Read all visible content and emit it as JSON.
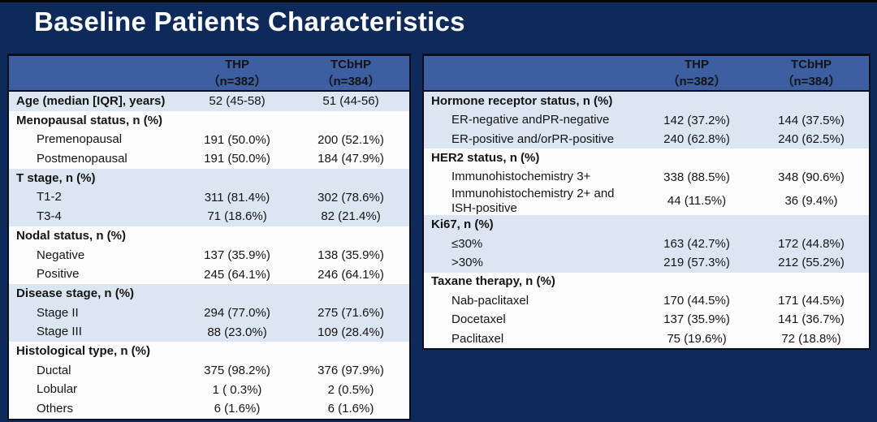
{
  "title": "Baseline Patients Characteristics",
  "colors": {
    "background_navy": "#0d2a5a",
    "table_header_blue": "#3d5fa2",
    "band_light_blue": "#dce5f2",
    "band_white": "#fdfdfe",
    "border_black": "#0a0e1c",
    "title_text": "#ffffff",
    "body_text": "#141414"
  },
  "left_table": {
    "header": {
      "thp": "THP\n（n=382）",
      "tcbhp": "TCbHP\n（n=384）"
    },
    "rows": [
      {
        "label": "Age (median [IQR], years)",
        "style": "section",
        "band": "light",
        "thp": "52 (45-58)",
        "tcbhp": "51 (44-56)"
      },
      {
        "label": "Menopausal status, n (%)",
        "style": "section",
        "band": "white",
        "thp": "",
        "tcbhp": ""
      },
      {
        "label": "Premenopausal",
        "style": "item",
        "band": "white",
        "thp": "191 (50.0%)",
        "tcbhp": "200 (52.1%)"
      },
      {
        "label": "Postmenopausal",
        "style": "item",
        "band": "white",
        "thp": "191 (50.0%)",
        "tcbhp": "184 (47.9%)"
      },
      {
        "label": "T stage, n (%)",
        "style": "section",
        "band": "light",
        "thp": "",
        "tcbhp": ""
      },
      {
        "label": "T1-2",
        "style": "item",
        "band": "light",
        "thp": "311 (81.4%)",
        "tcbhp": "302 (78.6%)"
      },
      {
        "label": "T3-4",
        "style": "item",
        "band": "light",
        "thp": "71 (18.6%)",
        "tcbhp": "82 (21.4%)"
      },
      {
        "label": "Nodal status, n (%)",
        "style": "section",
        "band": "white",
        "thp": "",
        "tcbhp": ""
      },
      {
        "label": "Negative",
        "style": "item",
        "band": "white",
        "thp": "137 (35.9%)",
        "tcbhp": "138 (35.9%)"
      },
      {
        "label": "Positive",
        "style": "item",
        "band": "white",
        "thp": "245 (64.1%)",
        "tcbhp": "246 (64.1%)"
      },
      {
        "label": "Disease stage, n (%)",
        "style": "section",
        "band": "light",
        "thp": "",
        "tcbhp": ""
      },
      {
        "label": "Stage II",
        "style": "item",
        "band": "light",
        "thp": "294 (77.0%)",
        "tcbhp": "275 (71.6%)"
      },
      {
        "label": "Stage III",
        "style": "item",
        "band": "light",
        "thp": "88 (23.0%)",
        "tcbhp": "109 (28.4%)"
      },
      {
        "label": "Histological type, n (%)",
        "style": "section",
        "band": "white",
        "thp": "",
        "tcbhp": ""
      },
      {
        "label": "Ductal",
        "style": "item",
        "band": "white",
        "thp": "375 (98.2%)",
        "tcbhp": "376 (97.9%)"
      },
      {
        "label": "Lobular",
        "style": "item",
        "band": "white",
        "thp": "1 ( 0.3%)",
        "tcbhp": "2 (0.5%)"
      },
      {
        "label": "Others",
        "style": "item",
        "band": "white",
        "thp": "6 (1.6%)",
        "tcbhp": "6 (1.6%)"
      }
    ]
  },
  "right_table": {
    "header": {
      "thp": "THP\n（n=382）",
      "tcbhp": "TCbHP\n（n=384）"
    },
    "rows": [
      {
        "label": "Hormone receptor status, n (%)",
        "style": "section",
        "band": "light",
        "thp": "",
        "tcbhp": ""
      },
      {
        "label": "ER-negative andPR-negative",
        "style": "item",
        "band": "light",
        "thp": "142 (37.2%)",
        "tcbhp": "144 (37.5%)"
      },
      {
        "label": "ER-positive and/orPR-positive",
        "style": "item",
        "band": "light",
        "thp": "240 (62.8%)",
        "tcbhp": "240 (62.5%)"
      },
      {
        "label": "HER2 status, n (%)",
        "style": "section",
        "band": "white",
        "thp": "",
        "tcbhp": ""
      },
      {
        "label": "Immunohistochemistry 3+",
        "style": "item",
        "band": "white",
        "thp": "338 (88.5%)",
        "tcbhp": "348 (90.6%)"
      },
      {
        "label": "Immunohistochemistry 2+ and\nISH-positive",
        "style": "item",
        "band": "white",
        "thp": "44 (11.5%)",
        "tcbhp": "36 (9.4%)"
      },
      {
        "label": "Ki67, n (%)",
        "style": "section",
        "band": "light",
        "thp": "",
        "tcbhp": ""
      },
      {
        "label": "≤30%",
        "style": "item",
        "band": "light",
        "thp": "163 (42.7%)",
        "tcbhp": "172 (44.8%)"
      },
      {
        "label": ">30%",
        "style": "item",
        "band": "light",
        "thp": "219 (57.3%)",
        "tcbhp": "212 (55.2%)"
      },
      {
        "label": "Taxane therapy, n (%)",
        "style": "section",
        "band": "white",
        "thp": "",
        "tcbhp": ""
      },
      {
        "label": "Nab-paclitaxel",
        "style": "item",
        "band": "white",
        "thp": "170 (44.5%)",
        "tcbhp": "171 (44.5%)"
      },
      {
        "label": "Docetaxel",
        "style": "item",
        "band": "white",
        "thp": "137 (35.9%)",
        "tcbhp": "141 (36.7%)"
      },
      {
        "label": "Paclitaxel",
        "style": "item",
        "band": "white",
        "thp": "75 (19.6%)",
        "tcbhp": "72 (18.8%)"
      }
    ]
  }
}
